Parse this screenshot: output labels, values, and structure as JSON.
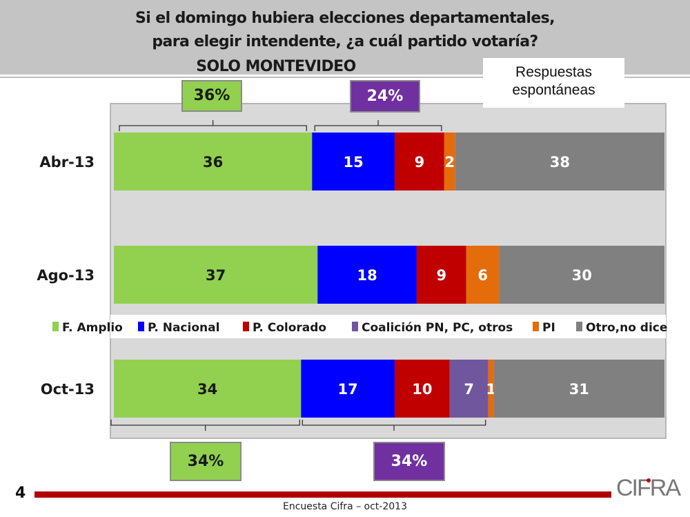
{
  "header": {
    "title_line1": "Si el domingo hubiera elecciones departamentales,",
    "title_line2": "para elegir intendente, ¿a cuál partido votaría?",
    "subtitle": "SOLO MONTEVIDEO",
    "note_line1": "Respuestas",
    "note_line2": "espontáneas"
  },
  "chart_data": {
    "type": "bar",
    "orientation": "horizontal-stacked-100",
    "title": "Si el domingo hubiera elecciones departamentales, para elegir intendente, ¿a cuál partido votaría? SOLO MONTEVIDEO",
    "categories": [
      "Abr-13",
      "Ago-13",
      "Oct-13"
    ],
    "series": [
      {
        "name": "F. Amplio",
        "color": "#92d050",
        "values": [
          36,
          37,
          34
        ],
        "label_color": "#1a1a1a"
      },
      {
        "name": "P. Nacional",
        "color": "#0000ff",
        "values": [
          15,
          18,
          17
        ],
        "label_color": "#ffffff"
      },
      {
        "name": "P. Colorado",
        "color": "#c00000",
        "values": [
          9,
          9,
          10
        ],
        "label_color": "#ffffff"
      },
      {
        "name": "Coalición PN, PC, otros",
        "color": "#70579d",
        "values": [
          0,
          0,
          7
        ],
        "label_color": "#ffffff"
      },
      {
        "name": "PI",
        "color": "#e46c0a",
        "values": [
          2,
          6,
          1
        ],
        "label_color": "#ffffff"
      },
      {
        "name": "Otro,no dice",
        "color": "#808080",
        "values": [
          38,
          30,
          31
        ],
        "label_color": "#ffffff"
      }
    ],
    "legend_position": "between Ago-13 and Oct-13",
    "annotations": [
      {
        "category": "Abr-13",
        "group": "F. Amplio",
        "label": "36%",
        "color": "#92d050",
        "text_color": "#1a1a1a",
        "position": "top"
      },
      {
        "category": "Abr-13",
        "group": "P. Nacional + P. Colorado",
        "label": "24%",
        "color": "#7030a0",
        "text_color": "#ffffff",
        "position": "top"
      },
      {
        "category": "Oct-13",
        "group": "F. Amplio",
        "label": "34%",
        "color": "#92d050",
        "text_color": "#1a1a1a",
        "position": "bottom"
      },
      {
        "category": "Oct-13",
        "group": "P. Nacional + P. Colorado + Coalición",
        "label": "34%",
        "color": "#7030a0",
        "text_color": "#ffffff",
        "position": "bottom"
      }
    ]
  },
  "footer": {
    "page_number": "4",
    "source": "Encuesta Cifra – oct-2013",
    "logo": "CIFRA"
  }
}
